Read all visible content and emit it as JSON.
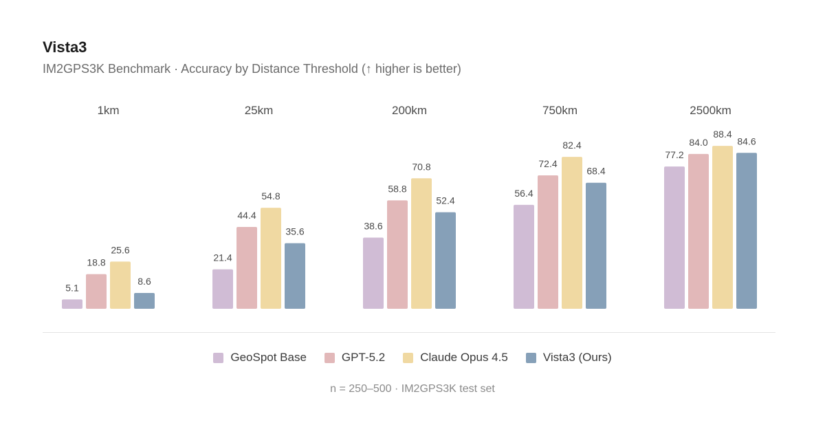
{
  "header": {
    "title": "Vista3",
    "subtitle": "IM2GPS3K Benchmark · Accuracy by Distance Threshold (↑ higher is better)"
  },
  "footnote": "n = 250–500 · IM2GPS3K test set",
  "chart_data": {
    "type": "bar",
    "title": "Vista3",
    "subtitle": "IM2GPS3K Benchmark · Accuracy by Distance Threshold (↑ higher is better)",
    "categories": [
      "1km",
      "25km",
      "200km",
      "750km",
      "2500km"
    ],
    "series": [
      {
        "name": "GeoSpot Base",
        "color": "#d0bcd5",
        "values": [
          5.1,
          21.4,
          38.6,
          56.4,
          77.2
        ],
        "labels": [
          "5.1",
          "21.4",
          "38.6",
          "56.4",
          "77.2"
        ]
      },
      {
        "name": "GPT-5.2",
        "color": "#e2b8b9",
        "values": [
          18.8,
          44.4,
          58.8,
          72.4,
          84.0
        ],
        "labels": [
          "18.8",
          "44.4",
          "58.8",
          "72.4",
          "84.0"
        ]
      },
      {
        "name": "Claude Opus 4.5",
        "color": "#f0d9a2",
        "values": [
          25.6,
          54.8,
          70.8,
          82.4,
          88.4
        ],
        "labels": [
          "25.6",
          "54.8",
          "70.8",
          "82.4",
          "88.4"
        ]
      },
      {
        "name": "Vista3 (Ours)",
        "color": "#86a0b8",
        "values": [
          8.6,
          35.6,
          52.4,
          68.4,
          84.6
        ],
        "labels": [
          "8.6",
          "35.6",
          "52.4",
          "68.4",
          "84.6"
        ]
      }
    ],
    "xlabel": "",
    "ylabel": "",
    "ylim": [
      0,
      100
    ],
    "grid": false,
    "legend": "bottom"
  }
}
